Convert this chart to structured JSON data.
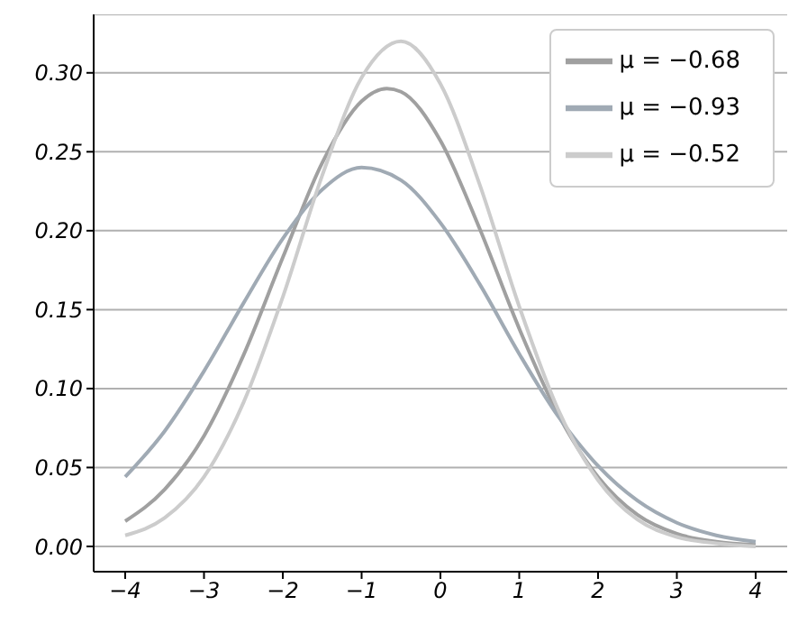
{
  "chart_data": {
    "type": "line",
    "xlim": [
      -4.4,
      4.4
    ],
    "ylim": [
      -0.016,
      0.337
    ],
    "xticks": [
      {
        "value": -4,
        "label": "−4"
      },
      {
        "value": -3,
        "label": "−3"
      },
      {
        "value": -2,
        "label": "−2"
      },
      {
        "value": -1,
        "label": "−1"
      },
      0,
      1,
      2,
      3,
      4
    ],
    "yticks": [
      {
        "value": 0,
        "label": "0.00"
      },
      {
        "value": 0.05,
        "label": "0.05"
      },
      {
        "value": 0.1,
        "label": "0.10"
      },
      {
        "value": 0.15,
        "label": "0.15"
      },
      {
        "value": 0.2,
        "label": "0.20"
      },
      {
        "value": 0.25,
        "label": "0.25"
      },
      {
        "value": 0.3,
        "label": "0.30"
      }
    ],
    "grid": "y",
    "legend": "top right",
    "marker": "none",
    "line_style": "solid",
    "series": [
      {
        "name": "μ = −0.68",
        "color": "#a0a0a0",
        "x": [
          -4,
          -3.5,
          -3,
          -2.5,
          -2,
          -1.5,
          -1,
          -0.68,
          -0.5,
          0,
          0.5,
          1,
          1.5,
          2,
          2.5,
          3,
          3.5,
          4
        ],
        "values": [
          0.016,
          0.036,
          0.07,
          0.121,
          0.183,
          0.243,
          0.282,
          0.29,
          0.288,
          0.257,
          0.201,
          0.138,
          0.083,
          0.044,
          0.02,
          0.008,
          0.003,
          0.001
        ]
      },
      {
        "name": "μ = −0.93",
        "color": "#a0aab4",
        "x": [
          -4,
          -3.5,
          -3,
          -2.5,
          -2,
          -1.5,
          -1,
          -0.5,
          0,
          0.5,
          1,
          1.5,
          2,
          2.5,
          3,
          3.5,
          4
        ],
        "values": [
          0.044,
          0.073,
          0.111,
          0.154,
          0.195,
          0.226,
          0.24,
          0.232,
          0.205,
          0.166,
          0.122,
          0.082,
          0.051,
          0.029,
          0.015,
          0.007,
          0.003
        ]
      },
      {
        "name": "μ = −0.52",
        "color": "#cccccc",
        "x": [
          -4,
          -3.5,
          -3,
          -2.5,
          -2,
          -1.5,
          -1,
          -0.5,
          0,
          0.5,
          1,
          1.5,
          2,
          2.5,
          3,
          3.5,
          4
        ],
        "values": [
          0.007,
          0.018,
          0.044,
          0.091,
          0.158,
          0.235,
          0.297,
          0.32,
          0.293,
          0.229,
          0.152,
          0.086,
          0.042,
          0.017,
          0.006,
          0.002,
          0
        ]
      }
    ]
  }
}
